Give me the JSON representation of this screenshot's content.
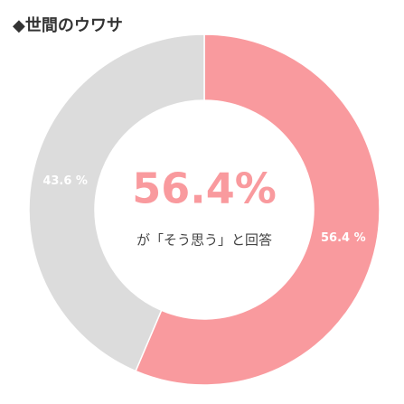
{
  "chart_data": {
    "type": "pie",
    "title": "◆世間のウワサ",
    "values": [
      56.4,
      43.6
    ],
    "value_labels": [
      "56.4 %",
      "43.6 %"
    ],
    "colors": [
      "#f99a9e",
      "#dcdcdc"
    ],
    "center_label": "56.4%",
    "center_caption": "が「そう思う」と回答"
  }
}
